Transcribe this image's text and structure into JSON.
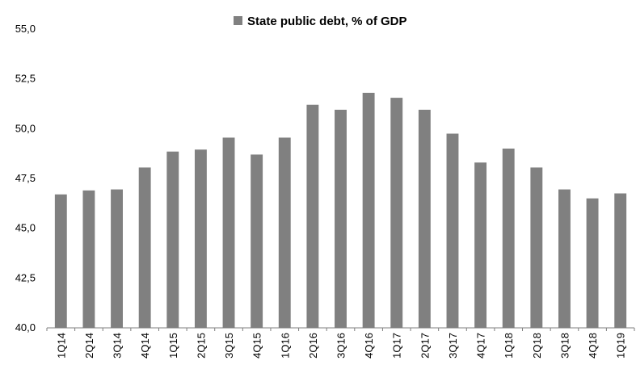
{
  "chart_data": {
    "type": "bar",
    "legend": {
      "label": "State public debt, % of GDP",
      "position": "top"
    },
    "categories": [
      "1Q14",
      "2Q14",
      "3Q14",
      "4Q14",
      "1Q15",
      "2Q15",
      "3Q15",
      "4Q15",
      "1Q16",
      "2Q16",
      "3Q16",
      "4Q16",
      "1Q17",
      "2Q17",
      "3Q17",
      "4Q17",
      "1Q18",
      "2Q18",
      "3Q18",
      "4Q18",
      "1Q19"
    ],
    "series": [
      {
        "name": "State public debt, % of GDP",
        "color": "#808080",
        "values": [
          46.7,
          46.9,
          46.95,
          48.05,
          48.85,
          48.95,
          49.55,
          48.7,
          49.55,
          51.2,
          50.95,
          51.8,
          51.55,
          50.95,
          49.75,
          48.3,
          49.0,
          48.05,
          46.95,
          46.5,
          46.75
        ]
      }
    ],
    "ylim": [
      40.0,
      55.0
    ],
    "yticks": [
      "40,0",
      "42,5",
      "45,0",
      "47,5",
      "50,0",
      "52,5",
      "55,0"
    ],
    "ytick_values": [
      40.0,
      42.5,
      45.0,
      47.5,
      50.0,
      52.5,
      55.0
    ],
    "grid": false
  }
}
